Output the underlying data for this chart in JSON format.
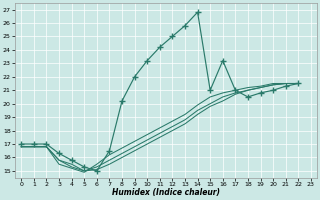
{
  "bg_color": "#cce8e5",
  "grid_color": "#ffffff",
  "line_color": "#2a7a6a",
  "xlabel": "Humidex (Indice chaleur)",
  "xlim": [
    -0.5,
    23.5
  ],
  "ylim": [
    14.5,
    27.5
  ],
  "xticks": [
    0,
    1,
    2,
    3,
    4,
    5,
    6,
    7,
    8,
    9,
    10,
    11,
    12,
    13,
    14,
    15,
    16,
    17,
    18,
    19,
    20,
    21,
    22,
    23
  ],
  "yticks": [
    15,
    16,
    17,
    18,
    19,
    20,
    21,
    22,
    23,
    24,
    25,
    26,
    27
  ],
  "arch_x": [
    0,
    1,
    2,
    3,
    4,
    5,
    6,
    7,
    8,
    9,
    10,
    11,
    12,
    13,
    14,
    15,
    16,
    17,
    18,
    19,
    20,
    21,
    22
  ],
  "arch_y": [
    17.0,
    17.0,
    17.0,
    16.3,
    15.8,
    15.3,
    15.0,
    16.5,
    20.2,
    22.0,
    23.2,
    24.2,
    25.0,
    25.8,
    26.8,
    21.0,
    23.2,
    21.0,
    20.5,
    20.8,
    21.0,
    21.3,
    21.5
  ],
  "diag1_x": [
    0,
    2,
    3,
    4,
    5,
    6,
    7,
    8,
    9,
    10,
    11,
    12,
    13,
    14,
    15,
    16,
    17,
    18,
    19,
    20,
    21,
    22
  ],
  "diag1_y": [
    16.8,
    16.8,
    15.8,
    15.5,
    15.0,
    15.1,
    15.5,
    16.0,
    16.5,
    17.0,
    17.5,
    18.0,
    18.5,
    19.2,
    19.8,
    20.2,
    20.7,
    21.0,
    21.2,
    21.4,
    21.5,
    21.5
  ],
  "diag2_x": [
    0,
    2,
    3,
    4,
    5,
    6,
    7,
    8,
    9,
    10,
    11,
    12,
    13,
    14,
    15,
    16,
    17,
    18,
    19,
    20,
    21,
    22
  ],
  "diag2_y": [
    16.8,
    16.8,
    15.8,
    15.3,
    15.0,
    15.3,
    15.8,
    16.3,
    16.8,
    17.3,
    17.8,
    18.3,
    18.8,
    19.5,
    20.0,
    20.5,
    20.8,
    21.0,
    21.2,
    21.4,
    21.5,
    21.5
  ],
  "diag3_x": [
    0,
    2,
    3,
    4,
    5,
    6,
    7,
    8,
    9,
    10,
    11,
    12,
    13,
    14,
    15,
    16,
    17,
    18,
    19,
    20,
    21,
    22
  ],
  "diag3_y": [
    16.8,
    16.8,
    15.5,
    15.2,
    14.9,
    15.5,
    16.2,
    16.7,
    17.2,
    17.7,
    18.2,
    18.7,
    19.2,
    19.9,
    20.5,
    20.8,
    21.0,
    21.2,
    21.3,
    21.5,
    21.5,
    21.5
  ]
}
